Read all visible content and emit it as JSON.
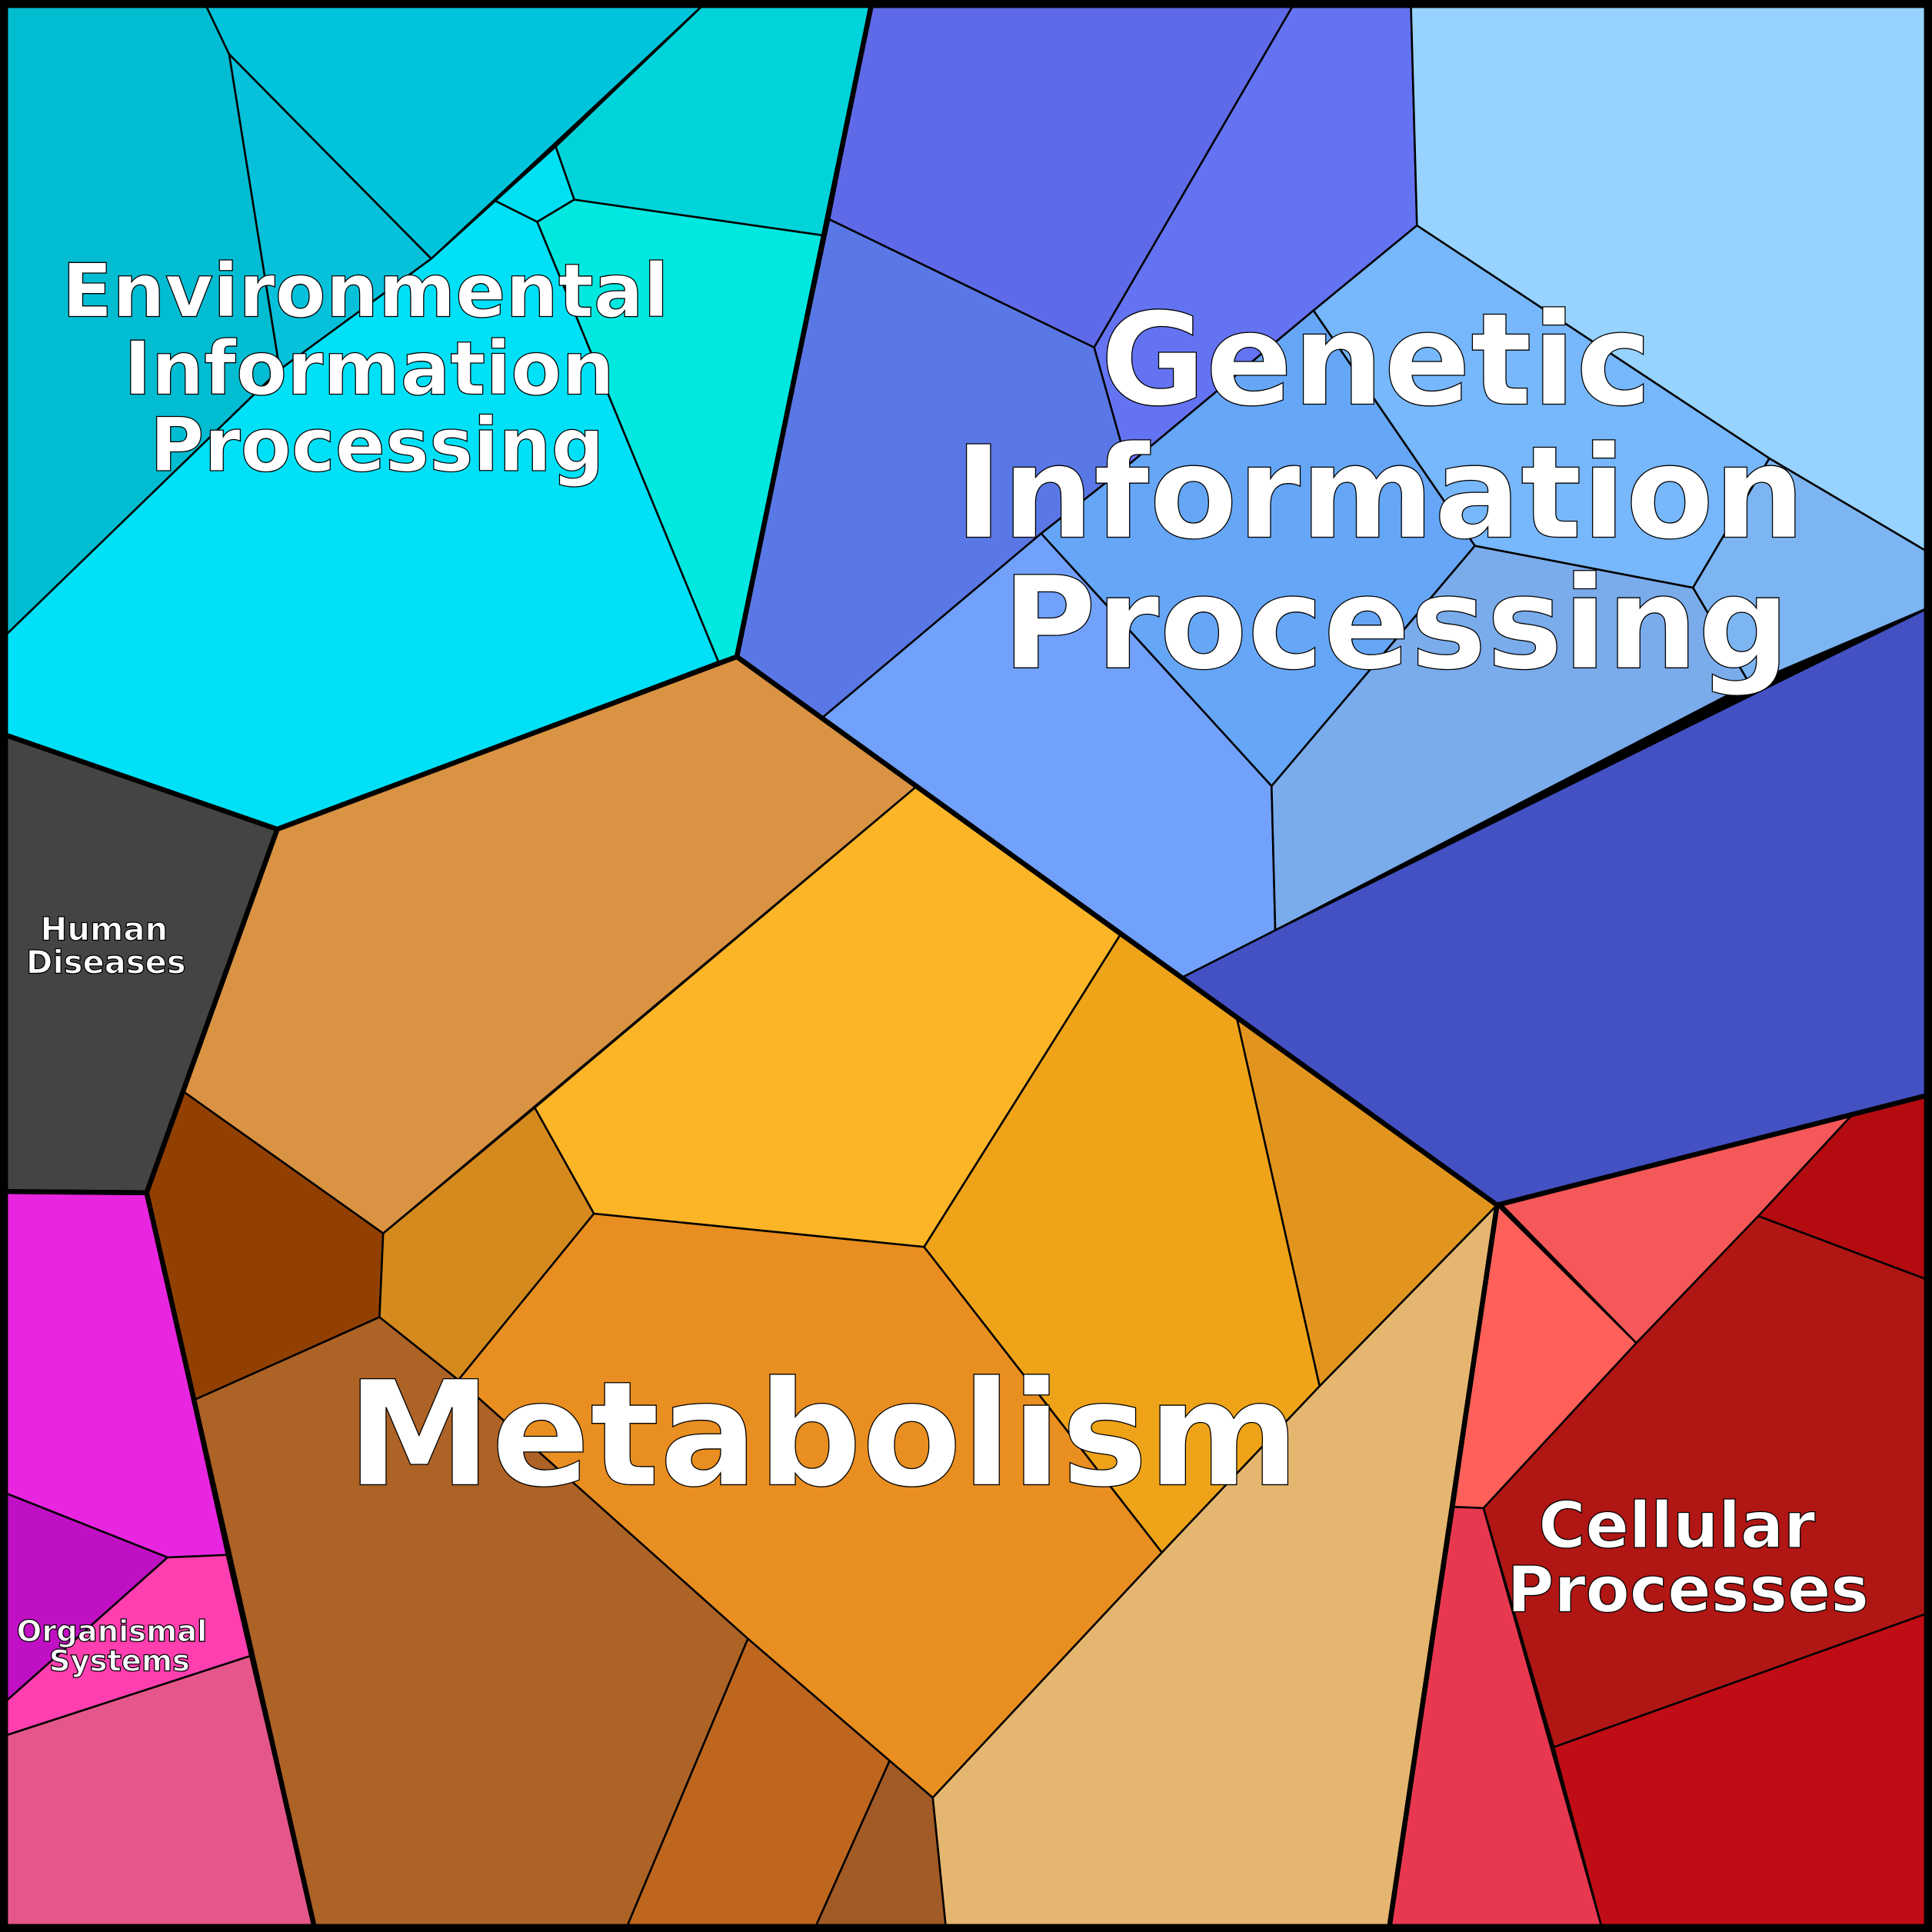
{
  "groups": [
    {
      "id": "environmental",
      "label_lines": [
        "Environmental",
        "Information",
        "Processing"
      ],
      "colors": [
        "#02BCD2",
        "#00C4DB",
        "#07C0DA",
        "#00E0F6",
        "#00E8DF",
        "#00D4DA",
        "#00E0F2"
      ]
    },
    {
      "id": "genetic",
      "label_lines": [
        "Genetic",
        "Information",
        "Processing"
      ],
      "colors": [
        "#5E6AE8",
        "#6473F2",
        "#97D3FE",
        "#5A78E5",
        "#77B7FB",
        "#66A6F6",
        "#71A1FB",
        "#7CB5F2",
        "#7AABEB",
        "#4451C3"
      ]
    },
    {
      "id": "human-diseases",
      "label_lines": [
        "Human",
        "Diseases"
      ],
      "colors": [
        "#444442"
      ]
    },
    {
      "id": "organismal",
      "label_lines": [
        "Organismal",
        "Systems"
      ],
      "colors": [
        "#E826DF",
        "#C010C4",
        "#FF3FB0",
        "#E5578A"
      ]
    },
    {
      "id": "cellular",
      "label_lines": [
        "Cellular",
        "Processes"
      ],
      "colors": [
        "#F55858",
        "#B30B10",
        "#FF6059",
        "#E83850",
        "#B01614",
        "#C00C14"
      ]
    },
    {
      "id": "metabolism",
      "label_lines": [
        "Metabolism"
      ],
      "colors": [
        "#D99343",
        "#924002",
        "#FDB528",
        "#D58A1E",
        "#E98E20",
        "#EEA318",
        "#E2951E",
        "#E4B670",
        "#AD6226",
        "#BE661E",
        "#A25A26"
      ]
    }
  ]
}
